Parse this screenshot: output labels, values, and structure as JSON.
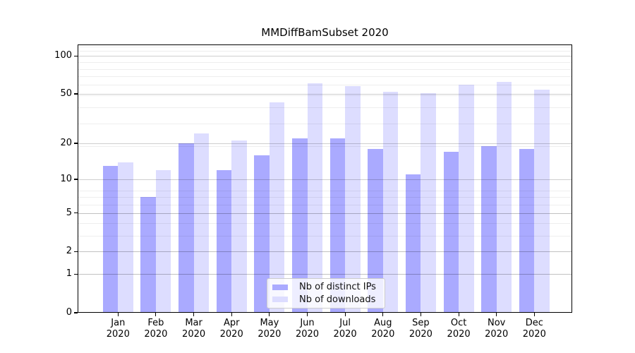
{
  "title": "MMDiffBamSubset 2020",
  "chart_data": {
    "type": "bar",
    "categories": [
      "Jan",
      "Feb",
      "Mar",
      "Apr",
      "May",
      "Jun",
      "Jul",
      "Aug",
      "Sep",
      "Oct",
      "Nov",
      "Dec"
    ],
    "year_label": "2020",
    "series": [
      {
        "name": "Nb of distinct IPs",
        "color": "#aaaaff",
        "values": [
          13,
          7,
          20,
          12,
          16,
          22,
          22,
          18,
          11,
          17,
          19,
          18
        ]
      },
      {
        "name": "Nb of downloads",
        "color": "#ddddff",
        "values": [
          14,
          12,
          24,
          21,
          43,
          61,
          58,
          52,
          51,
          59,
          62,
          54
        ]
      }
    ],
    "yticks": [
      0,
      1,
      2,
      5,
      10,
      20,
      50,
      100
    ],
    "yscale": "log10(1+v)",
    "ylim": [
      0,
      123
    ],
    "grid": "major+minor horizontal",
    "legend_position": "bottom-center"
  }
}
